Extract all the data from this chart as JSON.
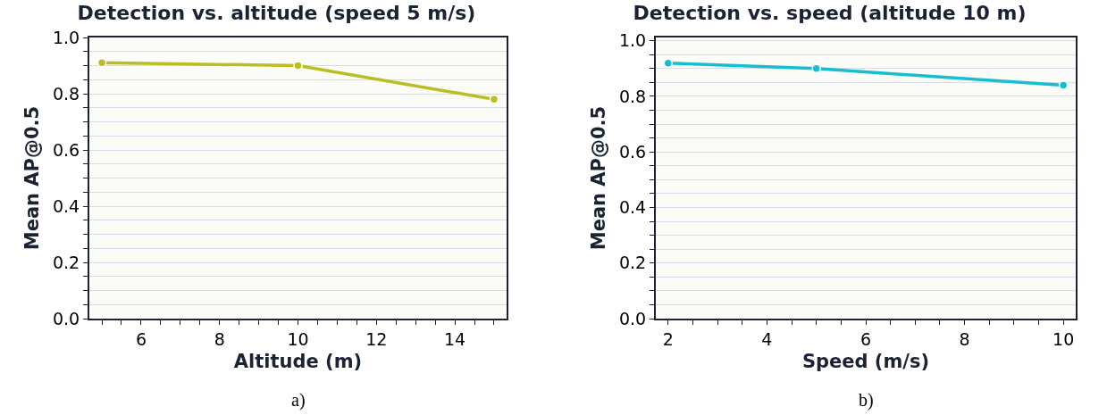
{
  "chart_data": [
    {
      "type": "line",
      "title": "Detection vs. altitude (speed 5 m/s)",
      "xlabel": "Altitude (m)",
      "ylabel": "Mean AP@0.5",
      "annotations": [
        "a)"
      ],
      "x": [
        5,
        10,
        15
      ],
      "series": [
        {
          "color": "#bcbd22",
          "values": [
            0.91,
            0.9,
            0.78
          ]
        }
      ],
      "xlim": [
        4.68,
        15.32
      ],
      "xticks": [
        {
          "value": 5,
          "label": null
        },
        {
          "value": 5.5,
          "label": null
        },
        6,
        {
          "value": 6.5,
          "label": null
        },
        {
          "value": 7,
          "label": null
        },
        {
          "value": 7.5,
          "label": null
        },
        8,
        {
          "value": 8.5,
          "label": null
        },
        {
          "value": 9,
          "label": null
        },
        {
          "value": 9.5,
          "label": null
        },
        10,
        {
          "value": 10.5,
          "label": null
        },
        {
          "value": 11,
          "label": null
        },
        {
          "value": 11.5,
          "label": null
        },
        12,
        {
          "value": 12.5,
          "label": null
        },
        {
          "value": 13,
          "label": null
        },
        {
          "value": 13.5,
          "label": null
        },
        14,
        {
          "value": 14.5,
          "label": null
        },
        {
          "value": 15,
          "label": null
        }
      ],
      "ylim": [
        0,
        1.0
      ],
      "yticks": [
        {
          "value": 0,
          "label": "0.0"
        },
        {
          "value": 0.05,
          "label": null
        },
        {
          "value": 0.1,
          "label": null
        },
        {
          "value": 0.15,
          "label": null
        },
        0.2,
        {
          "value": 0.25,
          "label": null
        },
        {
          "value": 0.3,
          "label": null
        },
        {
          "value": 0.35,
          "label": null
        },
        0.4,
        {
          "value": 0.45,
          "label": null
        },
        {
          "value": 0.5,
          "label": null
        },
        {
          "value": 0.55,
          "label": null
        },
        0.6,
        {
          "value": 0.65,
          "label": null
        },
        {
          "value": 0.7,
          "label": null
        },
        {
          "value": 0.75,
          "label": null
        },
        0.8,
        {
          "value": 0.85,
          "label": null
        },
        {
          "value": 0.9,
          "label": null
        },
        {
          "value": 0.95,
          "label": null
        },
        {
          "value": 1.0,
          "label": "1.0"
        }
      ],
      "grid": "y",
      "marker": "circle",
      "line_style": "solid"
    },
    {
      "type": "line",
      "title": "Detection vs. speed (altitude 10 m)",
      "xlabel": "Speed (m/s)",
      "ylabel": "Mean AP@0.5",
      "annotations": [
        "b)"
      ],
      "x": [
        2,
        5,
        10
      ],
      "series": [
        {
          "color": "#17becf",
          "values": [
            0.92,
            0.9,
            0.84
          ]
        }
      ],
      "xlim": [
        1.75,
        10.25
      ],
      "xticks": [
        2,
        {
          "value": 2.5,
          "label": null
        },
        {
          "value": 3,
          "label": null
        },
        {
          "value": 3.5,
          "label": null
        },
        4,
        {
          "value": 4.5,
          "label": null
        },
        {
          "value": 5,
          "label": null
        },
        {
          "value": 5.5,
          "label": null
        },
        6,
        {
          "value": 6.5,
          "label": null
        },
        {
          "value": 7,
          "label": null
        },
        {
          "value": 7.5,
          "label": null
        },
        8,
        {
          "value": 8.5,
          "label": null
        },
        {
          "value": 9,
          "label": null
        },
        {
          "value": 9.5,
          "label": null
        },
        10
      ],
      "ylim": [
        0,
        1.012
      ],
      "yticks": [
        {
          "value": 0,
          "label": "0.0"
        },
        {
          "value": 0.05,
          "label": null
        },
        {
          "value": 0.1,
          "label": null
        },
        {
          "value": 0.15,
          "label": null
        },
        0.2,
        {
          "value": 0.25,
          "label": null
        },
        {
          "value": 0.3,
          "label": null
        },
        {
          "value": 0.35,
          "label": null
        },
        0.4,
        {
          "value": 0.45,
          "label": null
        },
        {
          "value": 0.5,
          "label": null
        },
        {
          "value": 0.55,
          "label": null
        },
        0.6,
        {
          "value": 0.65,
          "label": null
        },
        {
          "value": 0.7,
          "label": null
        },
        {
          "value": 0.75,
          "label": null
        },
        0.8,
        {
          "value": 0.85,
          "label": null
        },
        {
          "value": 0.9,
          "label": null
        },
        {
          "value": 0.95,
          "label": null
        },
        {
          "value": 1.0,
          "label": "1.0"
        }
      ],
      "grid": "y",
      "marker": "circle",
      "line_style": "solid"
    }
  ]
}
